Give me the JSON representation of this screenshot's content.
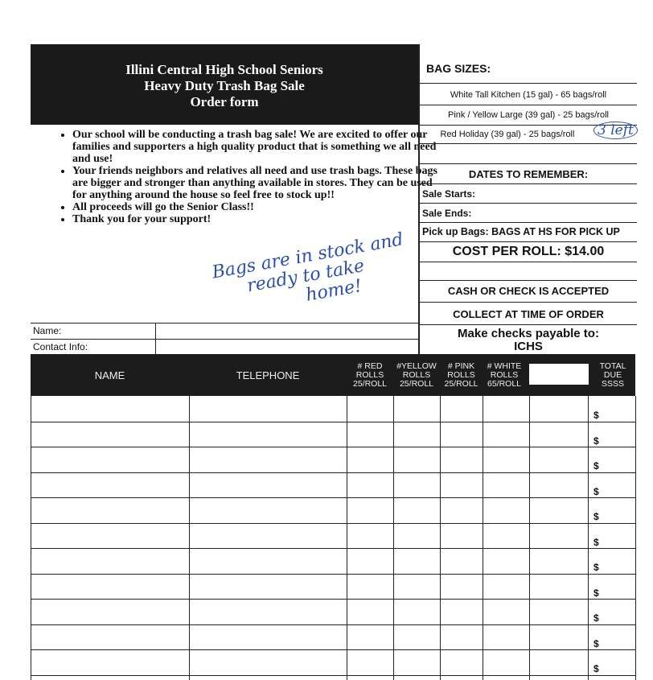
{
  "header": {
    "title_lines": [
      "Illini Central High School Seniors",
      "Heavy Duty Trash Bag Sale",
      "Order form"
    ]
  },
  "bullets": [
    "Our school will be conducting a trash bag sale!  We are excited to offer our families and supporters a high quality product that is something we all need and use!",
    "Your friends neighbors and relatives all need and use trash bags.  These bags are bigger and stronger than anything available in stores.  They can be used for anything around the house so feel free to stock up!!",
    "All proceeds will go the Senior Class!!",
    "Thank you for your support!"
  ],
  "handwritten_note": [
    "Bags are in stock and",
    "ready to take",
    "home!"
  ],
  "bag_sizes": {
    "title": "BAG SIZES:",
    "items": [
      "White Tall Kitchen (15 gal)  - 65 bags/roll",
      "Pink / Yellow Large (39 gal) - 25 bags/roll",
      "Red Holiday (39 gal) - 25 bags/roll"
    ],
    "handwritten_red_note": "3 left"
  },
  "dates": {
    "title": "DATES TO REMEMBER:",
    "sale_starts": "Sale Starts:",
    "sale_ends": "Sale Ends:",
    "pickup": "Pick up Bags:  BAGS AT HS FOR PICK UP"
  },
  "cost": "COST PER ROLL:  $14.00",
  "payment": {
    "cash_check": "CASH OR CHECK IS ACCEPTED",
    "collect": "COLLECT AT TIME OF ORDER",
    "payable_line1": "Make checks payable to:",
    "payable_line2": "ICHS"
  },
  "contact": {
    "name_label": "Name:",
    "contact_label": "Contact Info:"
  },
  "table": {
    "columns": [
      "NAME",
      "TELEPHONE",
      "# RED\nROLLS\n25/ROLL",
      "#YELLOW\nROLLS\n25/ROLL",
      "# PINK\nROLLS\n25/ROLL",
      "# WHITE\nROLLS\n65/ROLL",
      "",
      "TOTAL\nDUE\nSSSS"
    ],
    "row_currency": "$",
    "row_count": 11
  }
}
